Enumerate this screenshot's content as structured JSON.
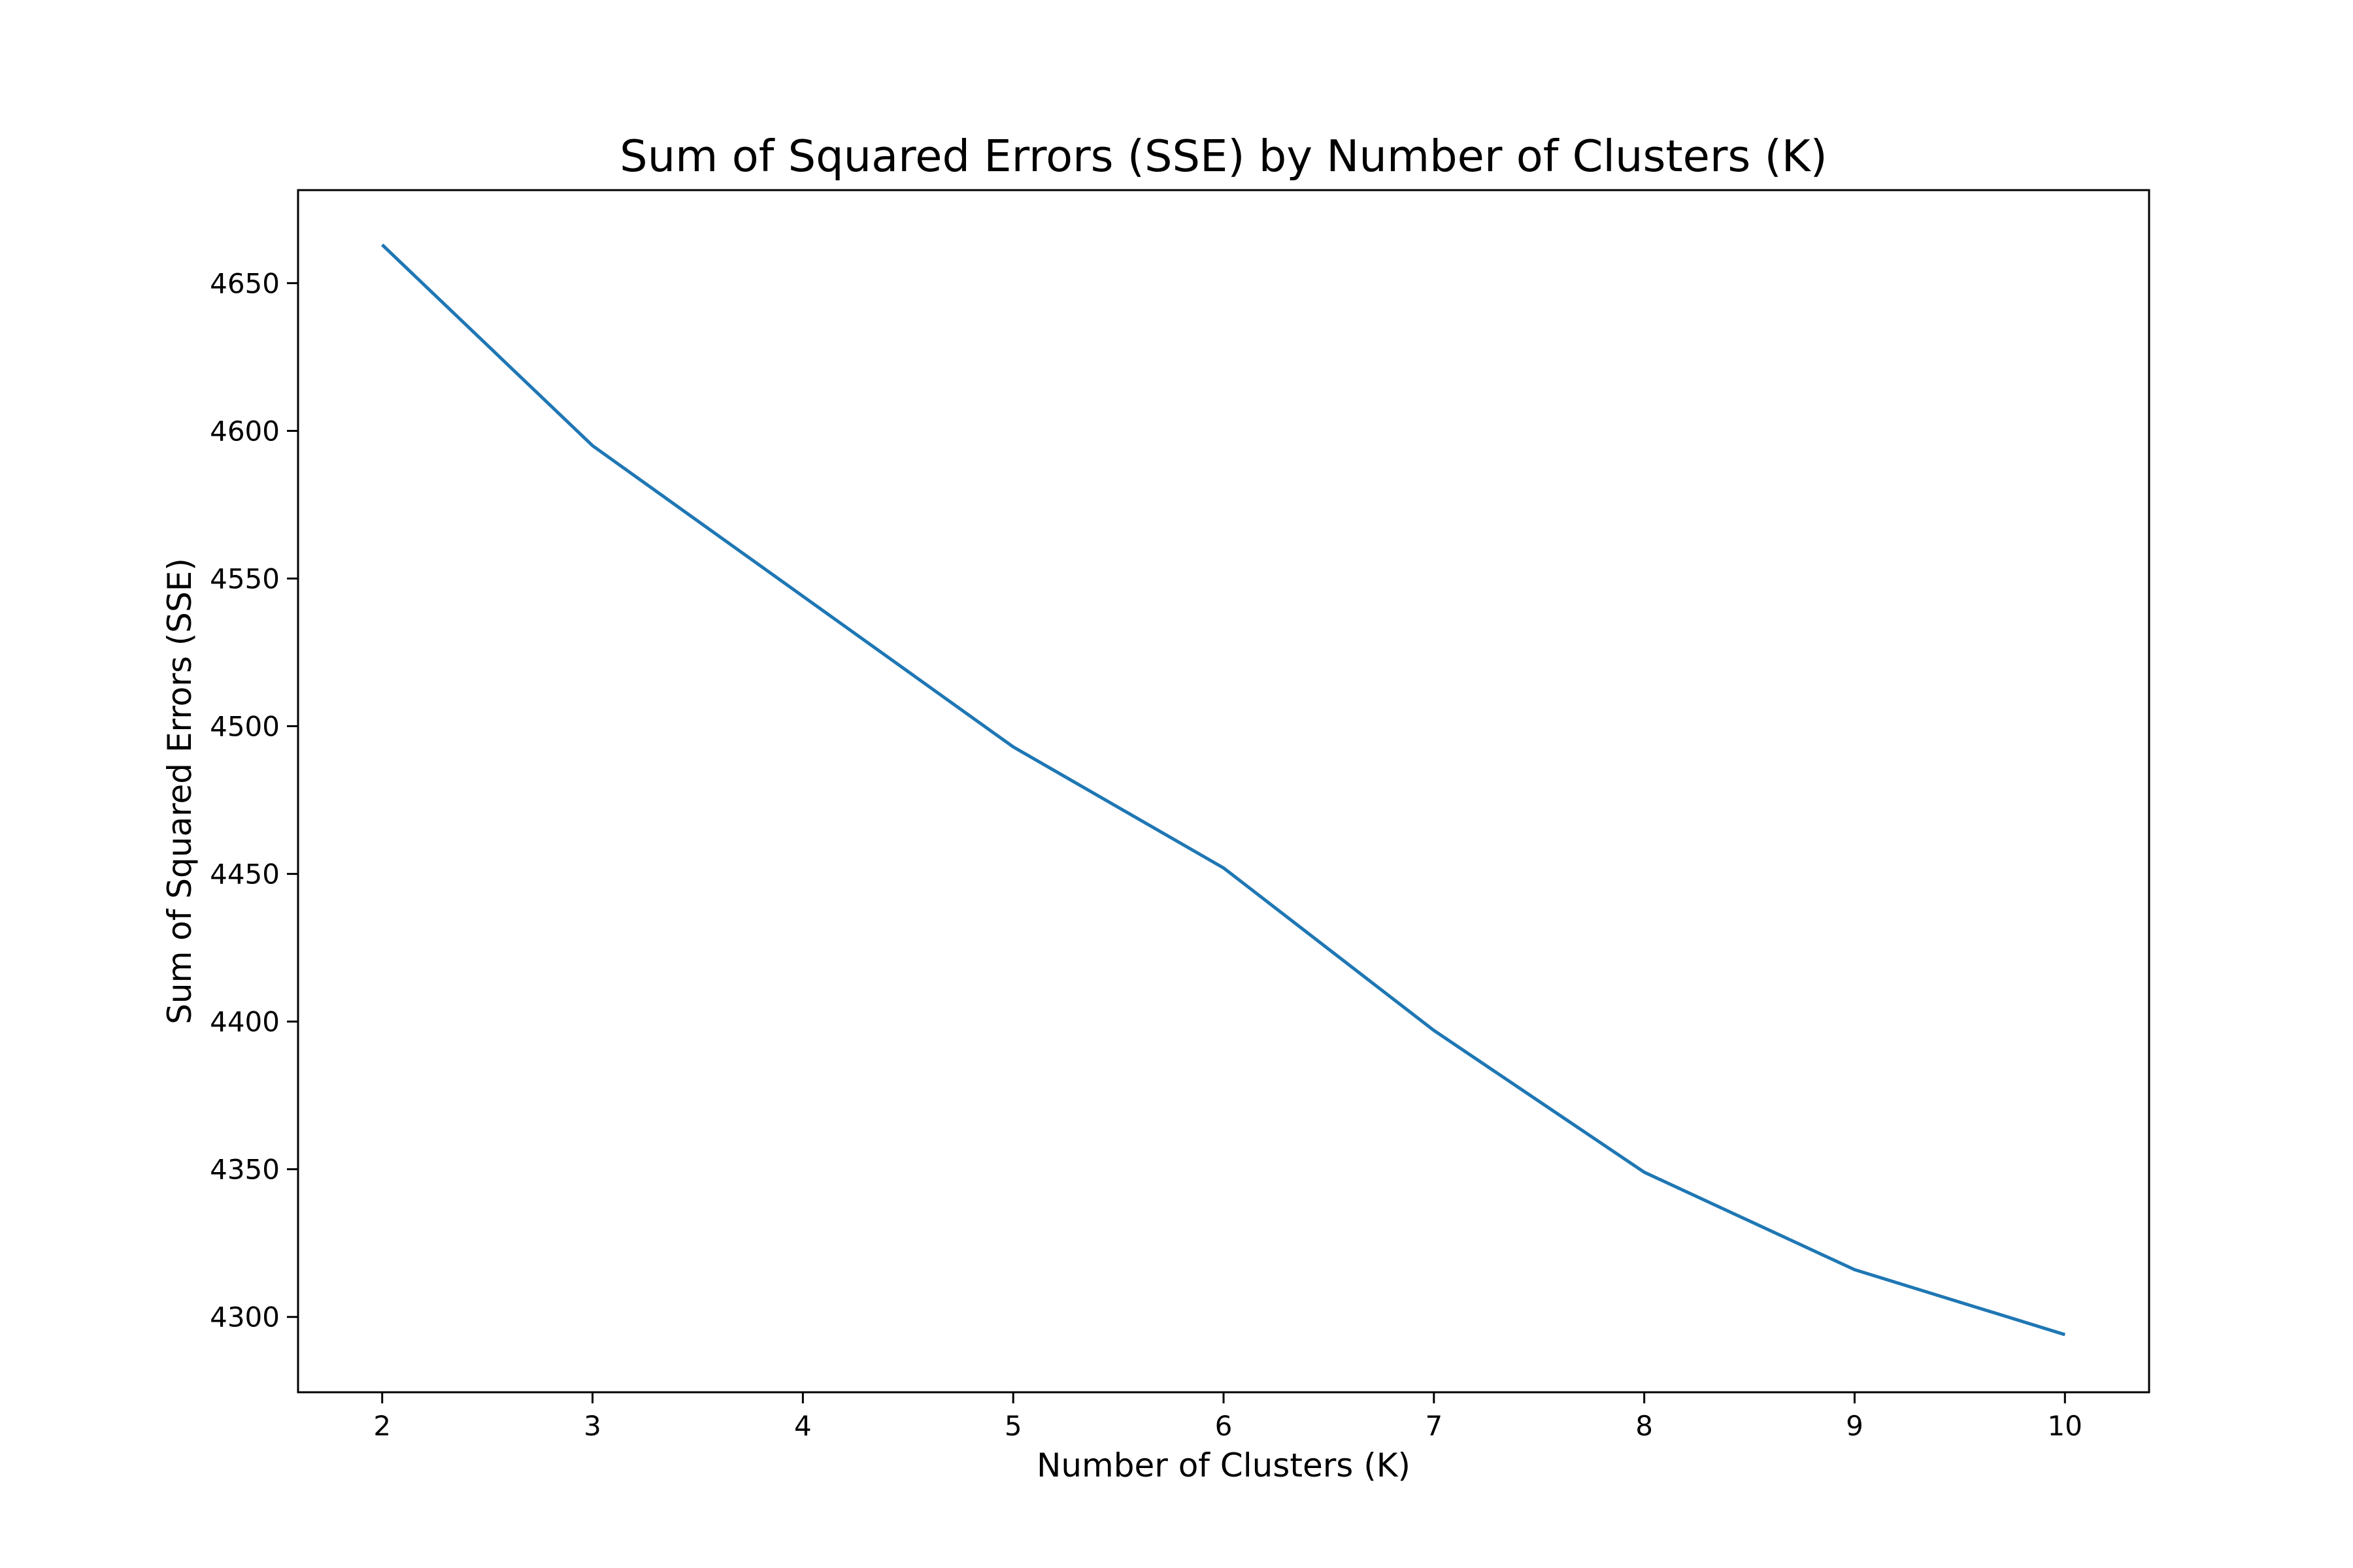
{
  "chart_data": {
    "type": "line",
    "title": "Sum of Squared Errors (SSE) by Number of Clusters (K)",
    "xlabel": "Number of Clusters (K)",
    "ylabel": "Sum of Squared Errors (SSE)",
    "x": [
      2,
      3,
      4,
      5,
      6,
      7,
      8,
      9,
      10
    ],
    "series": [
      {
        "values": [
          4663,
          4595,
          4544,
          4493,
          4452,
          4397,
          4349,
          4316,
          4294
        ],
        "color": "#1f77b4"
      }
    ],
    "xlim": [
      1.6,
      10.4
    ],
    "ylim": [
      4274.5,
      4681.5
    ],
    "xticks": [
      2,
      3,
      4,
      5,
      6,
      7,
      8,
      9,
      10
    ],
    "yticks": [
      4300,
      4350,
      4400,
      4450,
      4500,
      4550,
      4600,
      4650
    ],
    "grid": false,
    "legend": "none"
  }
}
